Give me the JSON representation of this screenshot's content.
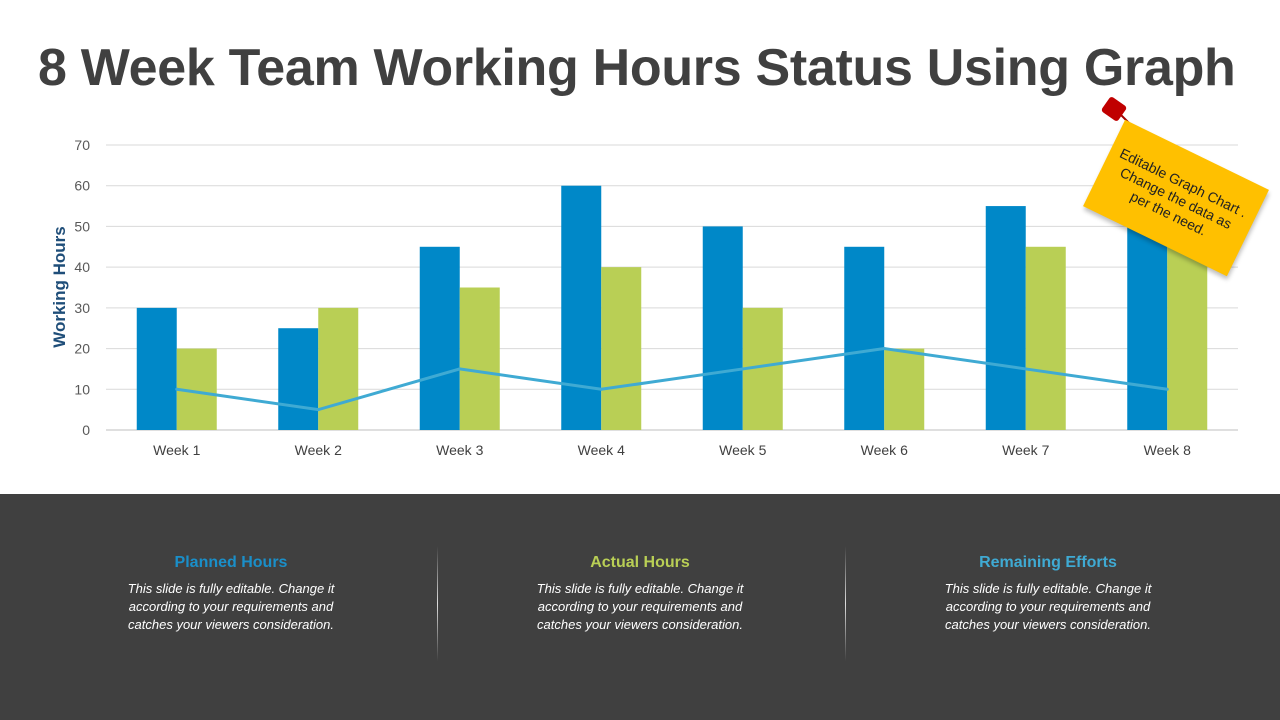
{
  "title": "8 Week Team Working Hours Status Using Graph",
  "note": "Editable Graph Chart . Change the data as per the need.",
  "colors": {
    "planned": "#0088c8",
    "actual": "#b9cf55",
    "remaining": "#3faad3",
    "panel": "#404040",
    "note": "#ffc000",
    "pin": "#c00000"
  },
  "chart_data": {
    "type": "bar",
    "ylabel": "Working Hours",
    "ylim": [
      0,
      70
    ],
    "yticks": [
      0,
      10,
      20,
      30,
      40,
      50,
      60,
      70
    ],
    "grid": true,
    "categories": [
      "Week 1",
      "Week 2",
      "Week 3",
      "Week 4",
      "Week 5",
      "Week 6",
      "Week 7",
      "Week 8"
    ],
    "series": [
      {
        "key": "planned",
        "type": "bar",
        "values": [
          30,
          25,
          45,
          60,
          50,
          45,
          55,
          60
        ]
      },
      {
        "key": "actual",
        "type": "bar",
        "values": [
          20,
          30,
          35,
          40,
          30,
          20,
          45,
          50
        ]
      },
      {
        "key": "remaining",
        "type": "line",
        "values": [
          10,
          5,
          15,
          10,
          15,
          20,
          15,
          10
        ]
      }
    ]
  },
  "legend_panels": [
    {
      "heading": "Planned Hours",
      "text": "This slide is fully editable. Change it according to your requirements and catches your viewers consideration."
    },
    {
      "heading": "Actual Hours",
      "text": "This slide is fully editable. Change it according to your requirements and catches your viewers consideration."
    },
    {
      "heading": "Remaining Efforts",
      "text": "This slide is fully editable. Change it according to your requirements and catches your viewers consideration."
    }
  ]
}
